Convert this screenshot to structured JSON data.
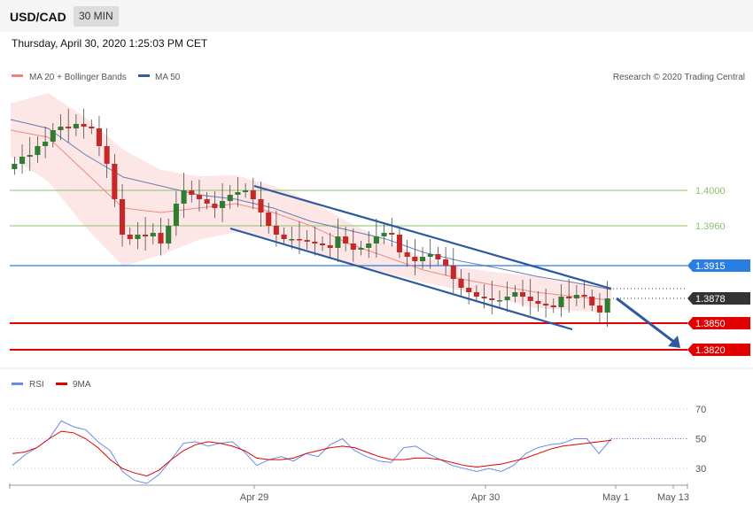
{
  "header": {
    "pair": "USD/CAD",
    "timeframe": "30 MIN",
    "timestamp": "Thursday, April 30, 2020 1:25:03 PM CET"
  },
  "legend": {
    "ma20": "MA 20 + Bollinger Bands",
    "ma50": "MA 50",
    "credit": "Research © 2020 Trading Central",
    "rsi": "RSI",
    "rsi_ma": "9MA"
  },
  "colors": {
    "ma20": "#f08080",
    "ma50": "#3a5a9a",
    "band": "#fde2e2",
    "up": "#2e7d32",
    "down": "#c62828",
    "support": "#e00000",
    "resistance": "#2a7de1",
    "target": "#8dc06a",
    "channel": "#2d5a9e",
    "rsi": "#6a8ae6",
    "rsi_ma": "#e00000"
  },
  "chart_data": [
    {
      "type": "candlestick",
      "ylim": [
        1.3805,
        1.4115
      ],
      "x_labels": [
        "Apr 29",
        "Apr 30",
        "May 1",
        "May 13"
      ],
      "price_levels": [
        {
          "label": "1.4000",
          "value": 1.4,
          "kind": "target"
        },
        {
          "label": "1.3960",
          "value": 1.396,
          "kind": "target"
        },
        {
          "label": "1.3915",
          "value": 1.3915,
          "kind": "resistance"
        },
        {
          "label": "1.3878",
          "value": 1.3878,
          "kind": "current"
        },
        {
          "label": "1.3850",
          "value": 1.385,
          "kind": "support"
        },
        {
          "label": "1.3820",
          "value": 1.382,
          "kind": "support"
        }
      ],
      "close_path": [
        1.403,
        1.4038,
        1.404,
        1.405,
        1.4055,
        1.4068,
        1.4072,
        1.407,
        1.4075,
        1.4072,
        1.407,
        1.405,
        1.403,
        1.399,
        1.395,
        1.3945,
        1.395,
        1.3948,
        1.3952,
        1.394,
        1.396,
        1.3985,
        1.4,
        1.3995,
        1.399,
        1.3985,
        1.398,
        1.3988,
        1.3995,
        1.3998,
        1.4,
        1.399,
        1.3975,
        1.396,
        1.395,
        1.3945,
        1.3945,
        1.3944,
        1.3942,
        1.394,
        1.3938,
        1.3935,
        1.3948,
        1.394,
        1.3933,
        1.3935,
        1.394,
        1.3948,
        1.3952,
        1.395,
        1.393,
        1.3925,
        1.392,
        1.3925,
        1.3928,
        1.3922,
        1.3915,
        1.39,
        1.389,
        1.3885,
        1.388,
        1.3878,
        1.3876,
        1.3876,
        1.388,
        1.3885,
        1.388,
        1.3875,
        1.3872,
        1.387,
        1.3868,
        1.388,
        1.3878,
        1.3882,
        1.388,
        1.387,
        1.3862,
        1.3878
      ],
      "series": [
        {
          "name": "MA 20 + Bollinger Bands",
          "values": [
            1.4068,
            1.406,
            1.402,
            1.398,
            1.3975,
            1.398,
            1.3985,
            1.3975,
            1.396,
            1.394,
            1.3925,
            1.391,
            1.39,
            1.3892,
            1.3885,
            1.388,
            1.3876
          ]
        },
        {
          "name": "MA 50",
          "values": [
            1.408,
            1.407,
            1.404,
            1.4015,
            1.4005,
            1.3995,
            1.399,
            1.398,
            1.3965,
            1.3955,
            1.3945,
            1.393,
            1.392,
            1.3912,
            1.3903,
            1.3896,
            1.3888
          ]
        }
      ],
      "annotations": [
        {
          "type": "channel-upper",
          "from": [
            "Apr 29",
            1.4005
          ],
          "to": [
            "May 1",
            1.3889
          ]
        },
        {
          "type": "channel-lower",
          "from": [
            "Apr 29",
            1.3957
          ],
          "to": [
            "Apr 30",
            1.3843
          ]
        },
        {
          "type": "target-arrow",
          "from": 1.3878,
          "to": 1.382
        }
      ]
    },
    {
      "type": "line",
      "title": "RSI",
      "ylim": [
        20,
        80
      ],
      "y_ticks": [
        30,
        50,
        70
      ],
      "series": [
        {
          "name": "RSI",
          "values": [
            32,
            39,
            44,
            50,
            62,
            58,
            56,
            48,
            42,
            28,
            22,
            20,
            26,
            36,
            47,
            48,
            45,
            47,
            48,
            41,
            32,
            36,
            38,
            35,
            40,
            38,
            46,
            50,
            42,
            38,
            35,
            34,
            44,
            45,
            40,
            36,
            32,
            30,
            28,
            30,
            28,
            32,
            40,
            44,
            46,
            47,
            50,
            50,
            40,
            50
          ]
        },
        {
          "name": "9MA",
          "values": [
            40,
            41,
            44,
            50,
            55,
            54,
            50,
            44,
            36,
            30,
            27,
            25,
            29,
            36,
            42,
            46,
            48,
            47,
            45,
            42,
            37,
            36,
            36,
            37,
            40,
            42,
            44,
            45,
            44,
            41,
            38,
            36,
            36,
            37,
            37,
            36,
            34,
            32,
            31,
            32,
            33,
            35,
            37,
            40,
            43,
            45,
            46,
            47,
            48,
            49
          ]
        }
      ]
    }
  ]
}
